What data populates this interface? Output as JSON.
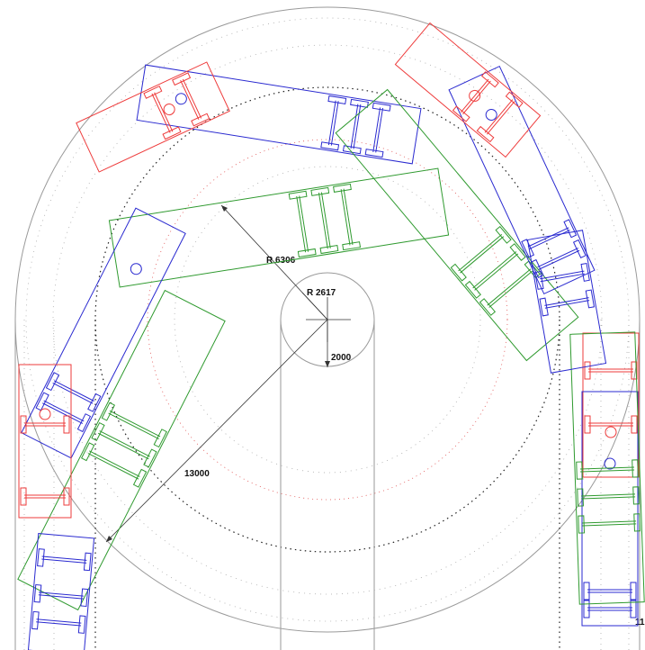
{
  "dimensions": {
    "outer_radius": "R 6306",
    "inner_radius": "R 2617",
    "offset": "2000",
    "turning_length": "13000",
    "edge_label": "11"
  },
  "colors": {
    "blue": "#2a2ad0",
    "green": "#2f9a2f",
    "red": "#ee3b3b",
    "grey": "#9a9a9a"
  }
}
